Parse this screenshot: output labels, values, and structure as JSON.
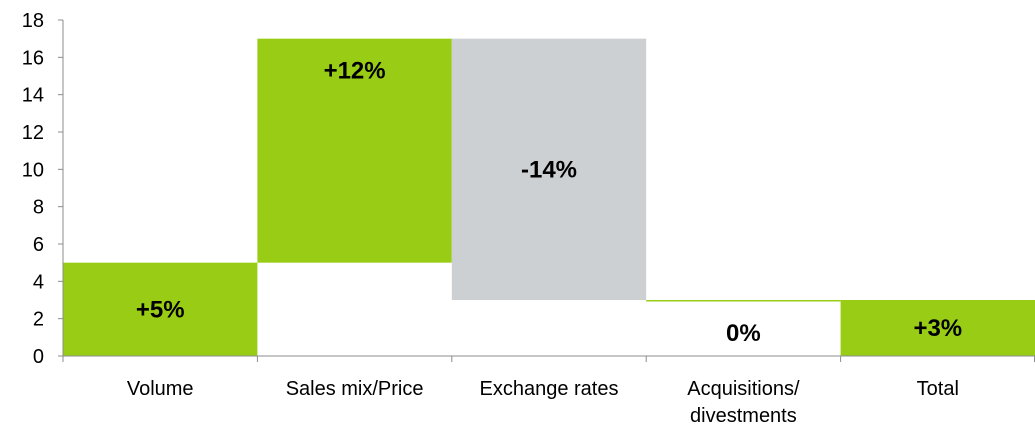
{
  "chart_data": {
    "type": "waterfall",
    "y_axis": {
      "min": 0,
      "max": 18,
      "step": 2
    },
    "grid": false,
    "categories": [
      {
        "label_lines": [
          "Volume"
        ],
        "start": 0,
        "end": 5,
        "data_label": "+5%",
        "color": "#99CC14"
      },
      {
        "label_lines": [
          "Sales mix/Price"
        ],
        "start": 5,
        "end": 17,
        "data_label": "+12%",
        "color": "#99CC14"
      },
      {
        "label_lines": [
          "Exchange rates"
        ],
        "start": 17,
        "end": 3,
        "data_label": "-14%",
        "color": "#CDD0D2"
      },
      {
        "label_lines": [
          "Acquisitions/",
          "divestments"
        ],
        "start": 3,
        "end": 3,
        "data_label": "0%",
        "color": "#99CC14"
      },
      {
        "label_lines": [
          "Total"
        ],
        "start": 0,
        "end": 3,
        "data_label": "+3%",
        "color": "#99CC14"
      }
    ],
    "colors": {
      "increase": "#99CC14",
      "decrease": "#CDD0D2",
      "axis": "#8C8C8C"
    }
  }
}
